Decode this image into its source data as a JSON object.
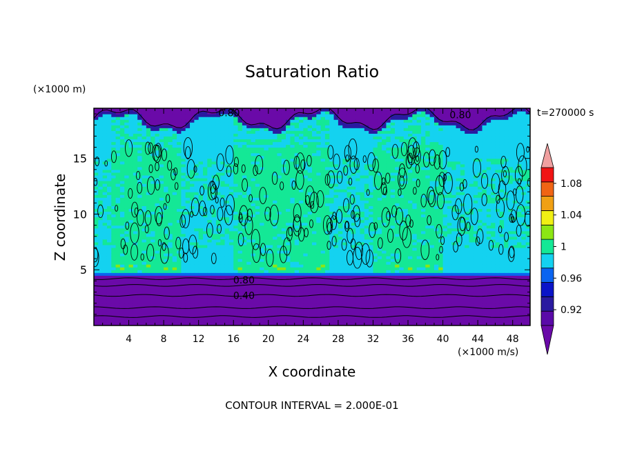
{
  "chart_data": {
    "type": "heatmap",
    "title": "Saturation Ratio",
    "xlabel": "X coordinate",
    "ylabel": "Z coordinate",
    "x_unit": "(×1000 m/s)",
    "y_unit": "(×1000 m)",
    "time_label": "t=270000 s",
    "footer": "CONTOUR INTERVAL = 2.000E-01",
    "xlim": [
      0,
      50
    ],
    "ylim": [
      0,
      19.5
    ],
    "x_ticks": [
      4,
      8,
      12,
      16,
      20,
      24,
      28,
      32,
      36,
      40,
      44,
      48
    ],
    "y_ticks": [
      5,
      10,
      15
    ],
    "colorbar": {
      "levels": [
        0.9,
        0.92,
        0.94,
        0.96,
        0.98,
        1.0,
        1.02,
        1.04,
        1.06,
        1.08,
        1.1
      ],
      "labels": [
        "0.92",
        "0.96",
        "1",
        "1.04",
        "1.08"
      ],
      "label_values": [
        0.92,
        0.96,
        1.0,
        1.04,
        1.08
      ],
      "colors": [
        "#5a0aa8",
        "#2a1aa0",
        "#0a14c8",
        "#0a64f0",
        "#14d2f0",
        "#14e896",
        "#8ce614",
        "#f0f014",
        "#f0a014",
        "#f06414",
        "#f01414"
      ],
      "under_color": "#6a0aa8",
      "over_color": "#f0a0a0"
    },
    "contour_labels": [
      {
        "text": "0.80",
        "x": 15.5,
        "y": 19.1
      },
      {
        "text": "0.80",
        "x": 42,
        "y": 18.9
      },
      {
        "text": "0.80",
        "x": 17.2,
        "y": 4.1
      },
      {
        "text": "0.40",
        "x": 17.2,
        "y": 2.7
      }
    ],
    "regions": {
      "surface_dry_layer": {
        "z_top": 4.4,
        "value": 0.4
      },
      "upper_dry_layer": {
        "z_bottom": 18.5,
        "value": 0.6
      },
      "subsaturated_columns_x": [
        [
          0,
          2
        ],
        [
          10,
          16
        ],
        [
          27,
          32
        ],
        [
          40,
          50
        ]
      ],
      "supersaturated_columns_x": [
        [
          2,
          10
        ],
        [
          16,
          27
        ],
        [
          32,
          40
        ]
      ],
      "supersaturated_value": 1.01,
      "near_saturation_value": 0.99
    }
  }
}
